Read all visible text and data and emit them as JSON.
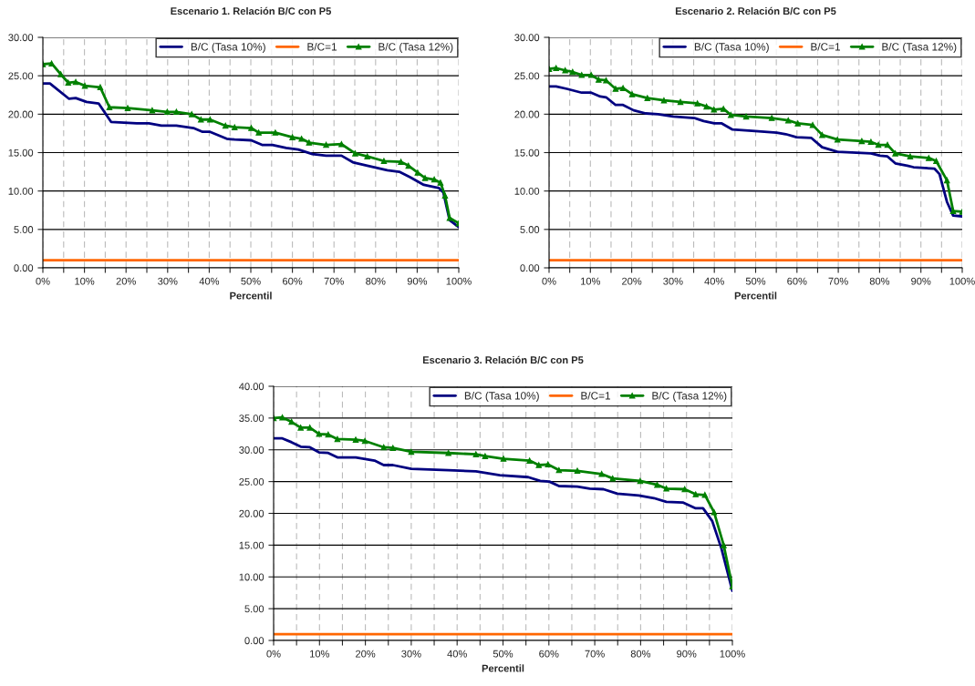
{
  "chart_data": [
    {
      "type": "line",
      "title": "Escenario 1. Relación B/C con P5",
      "xlabel": "Percentil",
      "xlim": [
        0,
        100
      ],
      "xticks": [
        {
          "value": 0,
          "label": "0%"
        },
        {
          "value": 5,
          "label": null
        },
        {
          "value": 10,
          "label": "10%"
        },
        {
          "value": 15,
          "label": null
        },
        {
          "value": 20,
          "label": "20%"
        },
        {
          "value": 25,
          "label": null
        },
        {
          "value": 30,
          "label": "30%"
        },
        {
          "value": 35,
          "label": null
        },
        {
          "value": 40,
          "label": "40%"
        },
        {
          "value": 45,
          "label": null
        },
        {
          "value": 50,
          "label": "50%"
        },
        {
          "value": 55,
          "label": null
        },
        {
          "value": 60,
          "label": "60%"
        },
        {
          "value": 65,
          "label": null
        },
        {
          "value": 70,
          "label": "70%"
        },
        {
          "value": 75,
          "label": null
        },
        {
          "value": 80,
          "label": "80%"
        },
        {
          "value": 85,
          "label": null
        },
        {
          "value": 90,
          "label": "90%"
        },
        {
          "value": 95,
          "label": null
        },
        {
          "value": 100,
          "label": "100%"
        }
      ],
      "ylim": [
        0,
        30
      ],
      "yticks": [
        {
          "value": 0,
          "label": "0.00"
        },
        {
          "value": 5,
          "label": "5.00"
        },
        {
          "value": 10,
          "label": "10.00"
        },
        {
          "value": 15,
          "label": "15.00"
        },
        {
          "value": 20,
          "label": "20.00"
        },
        {
          "value": 25,
          "label": "25.00"
        },
        {
          "value": 30,
          "label": "30.00"
        }
      ],
      "grid": true,
      "legend": "top right",
      "series": [
        {
          "name": "B/C (Tasa 10%)",
          "color": "#000080",
          "marker": "none",
          "x": [
            0,
            1.7,
            6.3,
            7.9,
            10.5,
            13.4,
            16.4,
            22.6,
            25.5,
            28.5,
            32.1,
            36.2,
            38.4,
            40.2,
            44.2,
            46.1,
            50.1,
            52.7,
            55.2,
            58.5,
            61.4,
            64.8,
            68.1,
            71.8,
            74.7,
            78.0,
            82.8,
            85.7,
            88.3,
            91.6,
            95.2,
            96.3,
            97.8,
            100
          ],
          "values": [
            24.0,
            24.0,
            22.0,
            22.1,
            21.6,
            21.4,
            19.0,
            18.8,
            18.8,
            18.5,
            18.5,
            18.2,
            17.7,
            17.7,
            16.8,
            16.7,
            16.6,
            16.0,
            16.0,
            15.6,
            15.4,
            14.8,
            14.6,
            14.6,
            13.7,
            13.3,
            12.7,
            12.5,
            11.8,
            10.8,
            10.4,
            9.8,
            6.2,
            5.3
          ]
        },
        {
          "name": "B/C=1",
          "color": "#ff6600",
          "marker": "none",
          "x": [
            0,
            100
          ],
          "values": [
            1,
            1
          ]
        },
        {
          "name": "B/C (Tasa 12%)",
          "color": "#008000",
          "marker": "triangle",
          "x": [
            0,
            2.1,
            4.3,
            6.1,
            7.9,
            10.1,
            13.8,
            16.0,
            20.4,
            26.3,
            29.9,
            32.1,
            35.8,
            38.0,
            40.2,
            43.9,
            46.1,
            50.1,
            51.9,
            55.9,
            60.0,
            62.2,
            64.0,
            68.1,
            71.8,
            75.1,
            78.0,
            82.0,
            86.1,
            87.9,
            90.1,
            91.9,
            94.1,
            95.6,
            96.7,
            97.8,
            100
          ],
          "values": [
            26.5,
            26.6,
            25.2,
            24.1,
            24.2,
            23.7,
            23.5,
            20.9,
            20.8,
            20.5,
            20.3,
            20.3,
            20.0,
            19.3,
            19.3,
            18.5,
            18.3,
            18.2,
            17.6,
            17.6,
            17.0,
            16.8,
            16.3,
            16.0,
            16.1,
            14.9,
            14.5,
            13.9,
            13.8,
            13.3,
            12.4,
            11.7,
            11.5,
            11.1,
            9.4,
            6.5,
            5.8
          ]
        }
      ]
    },
    {
      "type": "line",
      "title": "Escenario 2. Relación B/C con P5",
      "xlabel": "Percentil",
      "xlim": [
        0,
        100
      ],
      "xticks": [
        {
          "value": 0,
          "label": "0%"
        },
        {
          "value": 5,
          "label": null
        },
        {
          "value": 10,
          "label": "10%"
        },
        {
          "value": 15,
          "label": null
        },
        {
          "value": 20,
          "label": "20%"
        },
        {
          "value": 25,
          "label": null
        },
        {
          "value": 30,
          "label": "30%"
        },
        {
          "value": 35,
          "label": null
        },
        {
          "value": 40,
          "label": "40%"
        },
        {
          "value": 45,
          "label": null
        },
        {
          "value": 50,
          "label": "50%"
        },
        {
          "value": 55,
          "label": null
        },
        {
          "value": 60,
          "label": "60%"
        },
        {
          "value": 65,
          "label": null
        },
        {
          "value": 70,
          "label": "70%"
        },
        {
          "value": 75,
          "label": null
        },
        {
          "value": 80,
          "label": "80%"
        },
        {
          "value": 85,
          "label": null
        },
        {
          "value": 90,
          "label": "90%"
        },
        {
          "value": 95,
          "label": null
        },
        {
          "value": 100,
          "label": "100%"
        }
      ],
      "ylim": [
        0,
        30
      ],
      "yticks": [
        {
          "value": 0,
          "label": "0.00"
        },
        {
          "value": 5,
          "label": "5.00"
        },
        {
          "value": 10,
          "label": "10.00"
        },
        {
          "value": 15,
          "label": "15.00"
        },
        {
          "value": 20,
          "label": "20.00"
        },
        {
          "value": 25,
          "label": "25.00"
        },
        {
          "value": 30,
          "label": "30.00"
        }
      ],
      "grid": true,
      "legend": "top right",
      "series": [
        {
          "name": "B/C (Tasa 10%)",
          "color": "#000080",
          "marker": "none",
          "x": [
            0,
            1.7,
            4.3,
            7.9,
            10.2,
            12.4,
            13.8,
            16.1,
            17.9,
            20.5,
            23.4,
            26.4,
            30.0,
            35.2,
            37.4,
            40.0,
            41.8,
            44.4,
            49.9,
            55.1,
            57.3,
            59.9,
            63.5,
            66.1,
            69.8,
            77.9,
            80.1,
            81.9,
            83.8,
            86.7,
            88.2,
            93.3,
            94.5,
            96.3,
            97.8,
            100
          ],
          "values": [
            23.6,
            23.6,
            23.3,
            22.8,
            22.8,
            22.3,
            22.2,
            21.2,
            21.2,
            20.5,
            20.1,
            20.0,
            19.7,
            19.5,
            19.1,
            18.8,
            18.8,
            18.0,
            17.8,
            17.6,
            17.4,
            17.0,
            16.9,
            15.7,
            15.1,
            14.9,
            14.6,
            14.5,
            13.6,
            13.3,
            13.1,
            12.9,
            12.2,
            8.6,
            6.8,
            6.7
          ]
        },
        {
          "name": "B/C=1",
          "color": "#ff6600",
          "marker": "none",
          "x": [
            0,
            100
          ],
          "values": [
            1,
            1
          ]
        },
        {
          "name": "B/C (Tasa 12%)",
          "color": "#008000",
          "marker": "triangle",
          "x": [
            0,
            1.7,
            3.9,
            5.7,
            7.9,
            10.2,
            12.0,
            13.8,
            16.1,
            17.9,
            20.1,
            23.8,
            27.8,
            31.8,
            35.9,
            38.1,
            39.9,
            42.2,
            44.0,
            47.7,
            53.9,
            57.9,
            60.2,
            63.8,
            66.1,
            69.8,
            75.7,
            77.9,
            79.7,
            81.9,
            83.8,
            87.4,
            91.9,
            93.7,
            96.3,
            97.8,
            100
          ],
          "values": [
            25.9,
            26.0,
            25.7,
            25.5,
            25.1,
            25.1,
            24.5,
            24.4,
            23.3,
            23.4,
            22.6,
            22.1,
            21.8,
            21.6,
            21.4,
            21.0,
            20.6,
            20.7,
            19.9,
            19.7,
            19.5,
            19.2,
            18.8,
            18.6,
            17.3,
            16.7,
            16.5,
            16.4,
            16.0,
            16.0,
            14.9,
            14.5,
            14.3,
            13.9,
            11.4,
            7.4,
            7.3
          ]
        }
      ]
    },
    {
      "type": "line",
      "title": "Escenario 3. Relación B/C con P5",
      "xlabel": "Percentil",
      "xlim": [
        0,
        100
      ],
      "xticks": [
        {
          "value": 0,
          "label": "0%"
        },
        {
          "value": 5,
          "label": null
        },
        {
          "value": 10,
          "label": "10%"
        },
        {
          "value": 15,
          "label": null
        },
        {
          "value": 20,
          "label": "20%"
        },
        {
          "value": 25,
          "label": null
        },
        {
          "value": 30,
          "label": "30%"
        },
        {
          "value": 35,
          "label": null
        },
        {
          "value": 40,
          "label": "40%"
        },
        {
          "value": 45,
          "label": null
        },
        {
          "value": 50,
          "label": "50%"
        },
        {
          "value": 55,
          "label": null
        },
        {
          "value": 60,
          "label": "60%"
        },
        {
          "value": 65,
          "label": null
        },
        {
          "value": 70,
          "label": "70%"
        },
        {
          "value": 75,
          "label": null
        },
        {
          "value": 80,
          "label": "80%"
        },
        {
          "value": 85,
          "label": null
        },
        {
          "value": 90,
          "label": "90%"
        },
        {
          "value": 95,
          "label": null
        },
        {
          "value": 100,
          "label": "100%"
        }
      ],
      "ylim": [
        0,
        40
      ],
      "yticks": [
        {
          "value": 0,
          "label": "0.00"
        },
        {
          "value": 5,
          "label": "5.00"
        },
        {
          "value": 10,
          "label": "10.00"
        },
        {
          "value": 15,
          "label": "15.00"
        },
        {
          "value": 20,
          "label": "20.00"
        },
        {
          "value": 25,
          "label": "25.00"
        },
        {
          "value": 30,
          "label": "30.00"
        },
        {
          "value": 35,
          "label": "35.00"
        },
        {
          "value": 40,
          "label": "40.00"
        }
      ],
      "grid": true,
      "legend": "top right",
      "series": [
        {
          "name": "B/C (Tasa 10%)",
          "color": "#000080",
          "marker": "none",
          "x": [
            0,
            1.9,
            3.9,
            5.9,
            7.9,
            9.9,
            11.9,
            13.9,
            17.9,
            22.0,
            24.0,
            26.0,
            30.0,
            38.1,
            44.1,
            49.3,
            55.5,
            58.1,
            60.1,
            62.2,
            66.2,
            68.9,
            71.9,
            74.9,
            79.6,
            82.9,
            85.6,
            89.3,
            92.0,
            93.6,
            95.6,
            97.6,
            100
          ],
          "values": [
            31.8,
            31.8,
            31.2,
            30.5,
            30.4,
            29.6,
            29.5,
            28.8,
            28.8,
            28.3,
            27.6,
            27.6,
            27.0,
            26.8,
            26.6,
            26.0,
            25.7,
            25.1,
            25.0,
            24.3,
            24.2,
            23.9,
            23.8,
            23.1,
            22.8,
            22.4,
            21.8,
            21.7,
            20.8,
            20.8,
            18.8,
            14.5,
            7.8
          ]
        },
        {
          "name": "B/C=1",
          "color": "#ff6600",
          "marker": "none",
          "x": [
            0,
            100
          ],
          "values": [
            1,
            1
          ]
        },
        {
          "name": "B/C (Tasa 12%)",
          "color": "#008000",
          "marker": "triangle",
          "x": [
            0,
            1.9,
            3.9,
            5.9,
            7.9,
            9.9,
            11.9,
            13.9,
            17.9,
            19.9,
            24.0,
            26.0,
            30.0,
            38.1,
            44.1,
            46.1,
            50.1,
            55.8,
            57.8,
            59.8,
            62.2,
            66.2,
            71.5,
            73.9,
            79.9,
            83.6,
            85.6,
            89.6,
            92.0,
            94.0,
            96.0,
            98.1,
            100
          ],
          "values": [
            35.0,
            35.1,
            34.4,
            33.5,
            33.5,
            32.5,
            32.4,
            31.7,
            31.6,
            31.4,
            30.4,
            30.3,
            29.7,
            29.5,
            29.3,
            29.0,
            28.6,
            28.3,
            27.6,
            27.7,
            26.8,
            26.7,
            26.2,
            25.5,
            25.1,
            24.5,
            23.9,
            23.8,
            23.0,
            22.9,
            20.2,
            15.0,
            8.5
          ]
        }
      ]
    }
  ]
}
